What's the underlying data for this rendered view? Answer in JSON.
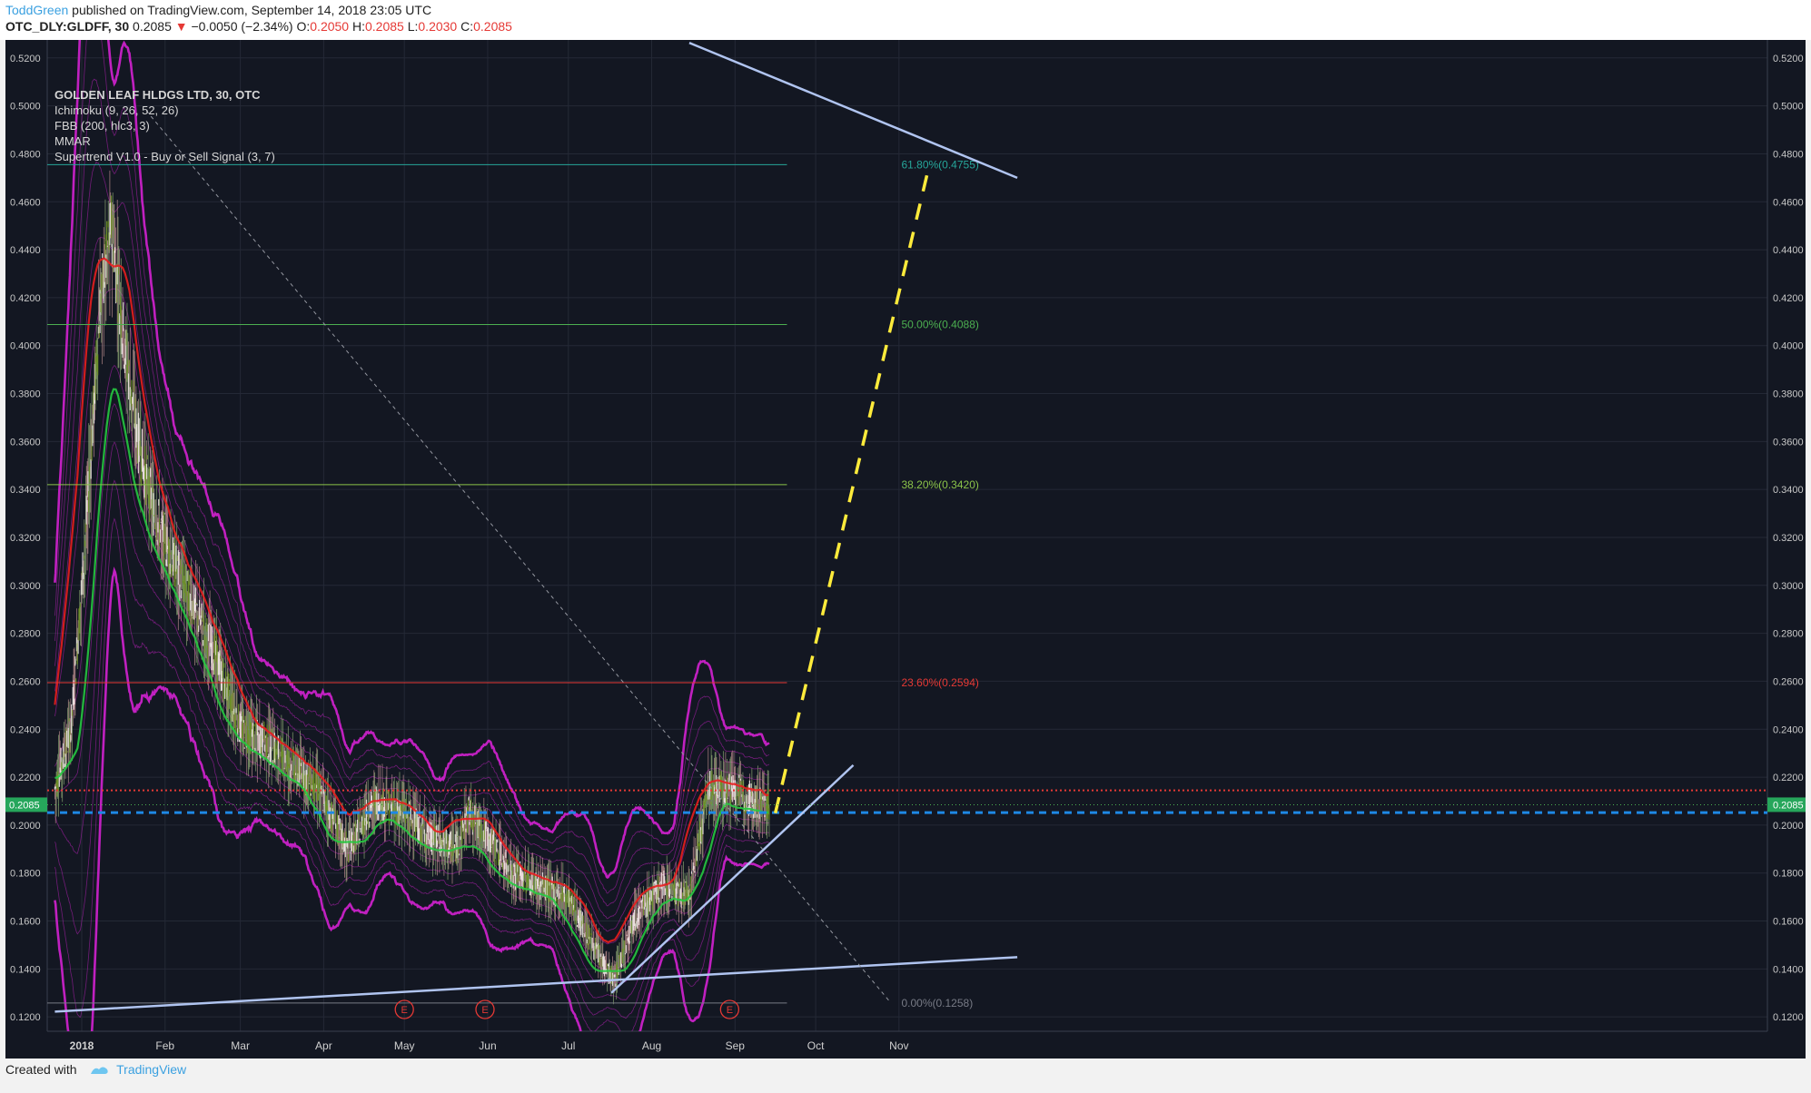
{
  "header": {
    "author": "ToddGreen",
    "published_text": "published on TradingView.com, September 14, 2018 23:05 UTC",
    "symbol": "OTC_DLY:GLDFF, 30",
    "price": "0.2085",
    "change": "−0.0050 (−2.34%)",
    "ohlc": [
      {
        "label": "O:",
        "value": "0.2050"
      },
      {
        "label": "H:",
        "value": "0.2085"
      },
      {
        "label": "L:",
        "value": "0.2030"
      },
      {
        "label": "C:",
        "value": "0.2085"
      }
    ]
  },
  "legend": {
    "title": "GOLDEN LEAF HLDGS LTD, 30, OTC",
    "studies": [
      "Ichimoku (9, 26, 52, 26)",
      "FBB (200, hlc3, 3)",
      "MMAR",
      "Supertrend V1.0 - Buy or Sell Signal (3, 7)"
    ]
  },
  "chart_data": {
    "type": "candlestick",
    "x_ticks": [
      "2018",
      "Feb",
      "Mar",
      "Apr",
      "May",
      "Jun",
      "Jul",
      "Aug",
      "Sep",
      "Oct",
      "Nov"
    ],
    "x_tick_dates": [
      "2018-01-01",
      "2018-02-01",
      "2018-03-01",
      "2018-04-01",
      "2018-05-01",
      "2018-06-01",
      "2018-07-01",
      "2018-08-01",
      "2018-09-01",
      "2018-10-01",
      "2018-11-01"
    ],
    "y_range": [
      0.114,
      0.5275
    ],
    "y_ticks": [
      "0.1200",
      "0.1400",
      "0.1600",
      "0.1800",
      "0.2000",
      "0.2200",
      "0.2400",
      "0.2600",
      "0.2800",
      "0.3000",
      "0.3200",
      "0.3400",
      "0.3600",
      "0.3800",
      "0.4000",
      "0.4200",
      "0.4400",
      "0.4600",
      "0.4800",
      "0.5000",
      "0.5200"
    ],
    "grid": true,
    "price_trace": [
      [
        "2017-12-22",
        0.215
      ],
      [
        "2017-12-28",
        0.24
      ],
      [
        "2018-01-03",
        0.33
      ],
      [
        "2018-01-08",
        0.42
      ],
      [
        "2018-01-12",
        0.45
      ],
      [
        "2018-01-17",
        0.4
      ],
      [
        "2018-01-22",
        0.36
      ],
      [
        "2018-01-28",
        0.33
      ],
      [
        "2018-02-04",
        0.31
      ],
      [
        "2018-02-12",
        0.29
      ],
      [
        "2018-02-20",
        0.27
      ],
      [
        "2018-03-01",
        0.24
      ],
      [
        "2018-03-10",
        0.235
      ],
      [
        "2018-03-20",
        0.225
      ],
      [
        "2018-03-30",
        0.215
      ],
      [
        "2018-04-10",
        0.19
      ],
      [
        "2018-04-20",
        0.21
      ],
      [
        "2018-05-01",
        0.205
      ],
      [
        "2018-05-10",
        0.195
      ],
      [
        "2018-05-20",
        0.19
      ],
      [
        "2018-05-25",
        0.205
      ],
      [
        "2018-06-01",
        0.195
      ],
      [
        "2018-06-10",
        0.18
      ],
      [
        "2018-06-20",
        0.175
      ],
      [
        "2018-07-01",
        0.17
      ],
      [
        "2018-07-10",
        0.15
      ],
      [
        "2018-07-18",
        0.135
      ],
      [
        "2018-07-25",
        0.16
      ],
      [
        "2018-08-05",
        0.175
      ],
      [
        "2018-08-15",
        0.17
      ],
      [
        "2018-08-22",
        0.215
      ],
      [
        "2018-09-01",
        0.215
      ],
      [
        "2018-09-08",
        0.21
      ],
      [
        "2018-09-14",
        0.2085
      ]
    ],
    "price_label": "0.2085",
    "fib_levels": [
      {
        "label": "61.80%(0.4755)",
        "value": 0.4755,
        "color": "#26a69a"
      },
      {
        "label": "50.00%(0.4088)",
        "value": 0.4088,
        "color": "#4caf50"
      },
      {
        "label": "38.20%(0.3420)",
        "value": 0.342,
        "color": "#8bc34a"
      },
      {
        "label": "23.60%(0.2594)",
        "value": 0.2594,
        "color": "#e53935"
      },
      {
        "label": "0.00%(0.1258)",
        "value": 0.1258,
        "color": "#787b86"
      }
    ],
    "fib_start_date": "2018-09-21",
    "horizontal_lines": [
      {
        "value": 0.2145,
        "color": "#e53935",
        "style": "dotted"
      },
      {
        "value": 0.2052,
        "color": "#1e88e5",
        "style": "dashed"
      }
    ],
    "trendlines": [
      {
        "from": [
          "2017-12-22",
          0.1222
        ],
        "to": [
          "2018-12-15",
          0.1449
        ],
        "color": "#b0c4f0",
        "style": "solid"
      },
      {
        "from": [
          "2018-08-15",
          0.5263
        ],
        "to": [
          "2018-12-15",
          0.47
        ],
        "color": "#b0c4f0",
        "style": "solid"
      },
      {
        "from": [
          "2018-07-17",
          0.13
        ],
        "to": [
          "2018-10-15",
          0.225
        ],
        "color": "#b0c4f0",
        "style": "solid"
      },
      {
        "from": [
          "2018-09-16",
          0.205
        ],
        "to": [
          "2018-11-12",
          0.474
        ],
        "color": "#ffeb3b",
        "style": "dashed"
      },
      {
        "from": [
          "2018-01-25",
          0.498
        ],
        "to": [
          "2018-10-29",
          0.1258
        ],
        "color": "#9598a1",
        "style": "dotted"
      }
    ],
    "earnings_markers": [
      {
        "date": "2018-05-01",
        "label": "E"
      },
      {
        "date": "2018-05-31",
        "label": "E"
      },
      {
        "date": "2018-08-30",
        "label": "E"
      }
    ]
  },
  "footer": {
    "created_with": "Created with",
    "brand": "TradingView"
  },
  "colors": {
    "background": "#131722",
    "band": "#c020c0",
    "bull": "#26c940",
    "bear": "#e81e1e"
  }
}
